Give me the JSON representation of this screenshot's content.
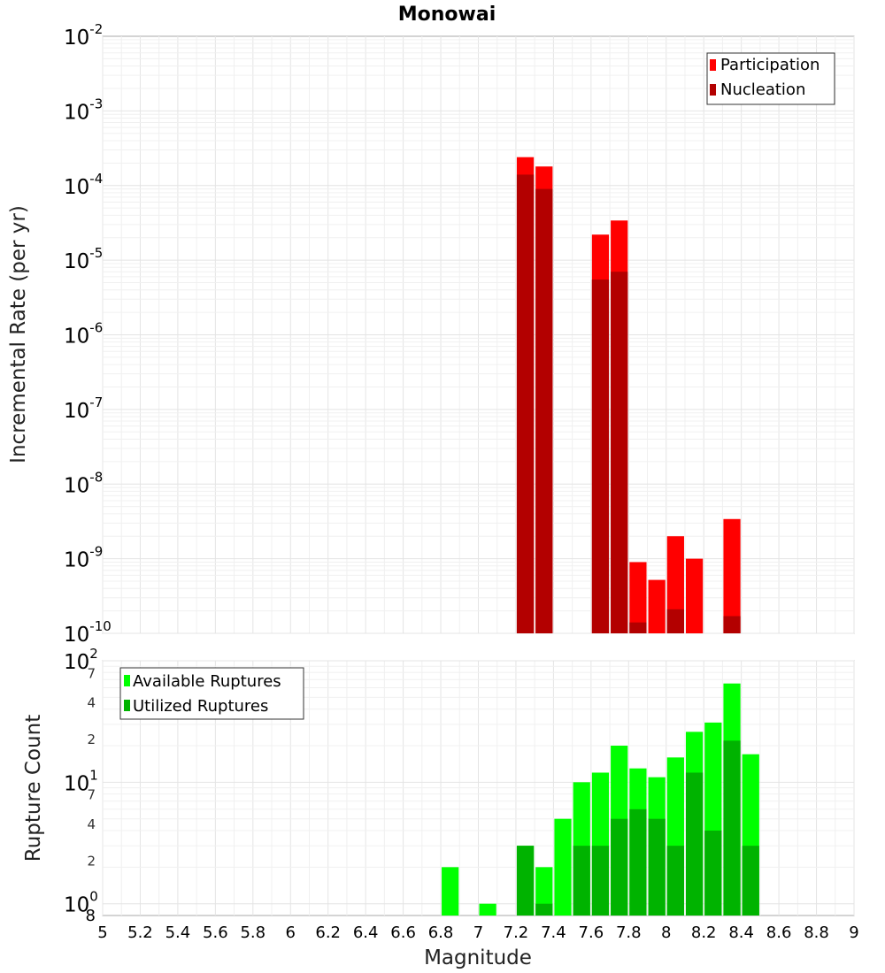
{
  "chart_data": [
    {
      "type": "bar",
      "title": "Monowai",
      "xlabel": "",
      "ylabel": "Incremental Rate (per yr)",
      "yscale": "log",
      "xlim": [
        5,
        9
      ],
      "ylim": [
        1e-10,
        0.01
      ],
      "y_tick_exponents": [
        -10,
        -9,
        -8,
        -7,
        -6,
        -5,
        -4,
        -3,
        -2
      ],
      "bin_width": 0.1,
      "legend_position": "top-right",
      "series": [
        {
          "name": "Participation",
          "color": "#ff0000",
          "points": [
            {
              "x": 7.25,
              "y": 0.00024
            },
            {
              "x": 7.35,
              "y": 0.00018
            },
            {
              "x": 7.65,
              "y": 2.2e-05
            },
            {
              "x": 7.75,
              "y": 3.4e-05
            },
            {
              "x": 7.85,
              "y": 9e-10
            },
            {
              "x": 7.95,
              "y": 5.2e-10
            },
            {
              "x": 8.05,
              "y": 2e-09
            },
            {
              "x": 8.15,
              "y": 1e-09
            },
            {
              "x": 8.35,
              "y": 3.4e-09
            }
          ]
        },
        {
          "name": "Nucleation",
          "color": "#b30000",
          "points": [
            {
              "x": 7.25,
              "y": 0.00014
            },
            {
              "x": 7.35,
              "y": 9e-05
            },
            {
              "x": 7.65,
              "y": 5.5e-06
            },
            {
              "x": 7.75,
              "y": 7e-06
            },
            {
              "x": 7.85,
              "y": 1.4e-10
            },
            {
              "x": 8.05,
              "y": 2.1e-10
            },
            {
              "x": 8.35,
              "y": 1.7e-10
            }
          ]
        }
      ]
    },
    {
      "type": "bar",
      "title": "",
      "xlabel": "Magnitude",
      "ylabel": "Rupture Count",
      "yscale": "log",
      "xlim": [
        5,
        9
      ],
      "ylim": [
        0.8,
        100
      ],
      "x_ticks": [
        "5",
        "5.2",
        "5.4",
        "5.6",
        "5.8",
        "6",
        "6.2",
        "6.4",
        "6.6",
        "6.8",
        "7",
        "7.2",
        "7.4",
        "7.6",
        "7.8",
        "8",
        "8.2",
        "8.4",
        "8.6",
        "8.8",
        "9"
      ],
      "y_major_ticks": [
        {
          "base": "10",
          "exp": "0",
          "value": 1
        },
        {
          "base": "10",
          "exp": "1",
          "value": 10
        },
        {
          "base": "10",
          "exp": "2",
          "value": 100
        }
      ],
      "y_minor_ticks": [
        {
          "label": "8",
          "value": 0.8
        },
        {
          "label": "2",
          "value": 2
        },
        {
          "label": "4",
          "value": 4
        },
        {
          "label": "7",
          "value": 7
        },
        {
          "label": "2",
          "value": 20
        },
        {
          "label": "4",
          "value": 40
        },
        {
          "label": "7",
          "value": 70
        }
      ],
      "bin_width": 0.1,
      "legend_position": "top-left",
      "series": [
        {
          "name": "Available Ruptures",
          "color": "#00ff00",
          "points": [
            {
              "x": 6.85,
              "y": 2
            },
            {
              "x": 7.05,
              "y": 1
            },
            {
              "x": 7.25,
              "y": 3
            },
            {
              "x": 7.35,
              "y": 2
            },
            {
              "x": 7.45,
              "y": 5
            },
            {
              "x": 7.55,
              "y": 10
            },
            {
              "x": 7.65,
              "y": 12
            },
            {
              "x": 7.75,
              "y": 20
            },
            {
              "x": 7.85,
              "y": 13
            },
            {
              "x": 7.95,
              "y": 11
            },
            {
              "x": 8.05,
              "y": 16
            },
            {
              "x": 8.15,
              "y": 26
            },
            {
              "x": 8.25,
              "y": 31
            },
            {
              "x": 8.35,
              "y": 65
            },
            {
              "x": 8.45,
              "y": 17
            }
          ]
        },
        {
          "name": "Utilized Ruptures",
          "color": "#00b300",
          "points": [
            {
              "x": 7.25,
              "y": 3
            },
            {
              "x": 7.35,
              "y": 1
            },
            {
              "x": 7.55,
              "y": 3
            },
            {
              "x": 7.65,
              "y": 3
            },
            {
              "x": 7.75,
              "y": 5
            },
            {
              "x": 7.85,
              "y": 6
            },
            {
              "x": 7.95,
              "y": 5
            },
            {
              "x": 8.05,
              "y": 3
            },
            {
              "x": 8.15,
              "y": 12
            },
            {
              "x": 8.25,
              "y": 4
            },
            {
              "x": 8.35,
              "y": 22
            },
            {
              "x": 8.45,
              "y": 3
            }
          ]
        }
      ]
    }
  ]
}
